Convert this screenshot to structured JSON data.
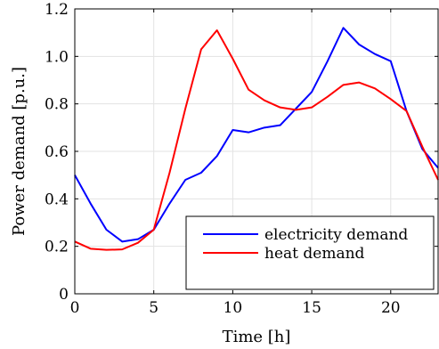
{
  "chart_data": {
    "type": "line",
    "title": "",
    "xlabel": "Time [h]",
    "ylabel": "Power demand [p.u.]",
    "xlim": [
      0,
      23
    ],
    "ylim": [
      0,
      1.2
    ],
    "xticks": [
      0,
      5,
      10,
      15,
      20
    ],
    "xtick_labels": [
      "0",
      "5",
      "10",
      "15",
      "20"
    ],
    "yticks": [
      0,
      0.2,
      0.4,
      0.6,
      0.8,
      1.0,
      1.2
    ],
    "ytick_labels": [
      "0",
      "0.2",
      "0.4",
      "0.6",
      "0.8",
      "1.0",
      "1.2"
    ],
    "grid": true,
    "legend_position": "bottom-right",
    "x": [
      0,
      1,
      2,
      3,
      4,
      5,
      6,
      7,
      8,
      9,
      10,
      11,
      12,
      13,
      14,
      15,
      16,
      17,
      18,
      19,
      20,
      21,
      22,
      23
    ],
    "series": [
      {
        "name": "electricity demand",
        "color": "#0000ff",
        "values": [
          0.5,
          0.38,
          0.27,
          0.22,
          0.23,
          0.27,
          0.38,
          0.48,
          0.51,
          0.58,
          0.69,
          0.68,
          0.7,
          0.71,
          0.78,
          0.85,
          0.98,
          1.12,
          1.05,
          1.01,
          0.98,
          0.77,
          0.61,
          0.53
        ]
      },
      {
        "name": "heat demand",
        "color": "#ff0000",
        "values": [
          0.22,
          0.19,
          0.185,
          0.187,
          0.215,
          0.27,
          0.51,
          0.78,
          1.03,
          1.11,
          0.99,
          0.86,
          0.815,
          0.785,
          0.775,
          0.785,
          0.83,
          0.88,
          0.89,
          0.865,
          0.82,
          0.77,
          0.62,
          0.48
        ]
      }
    ]
  }
}
